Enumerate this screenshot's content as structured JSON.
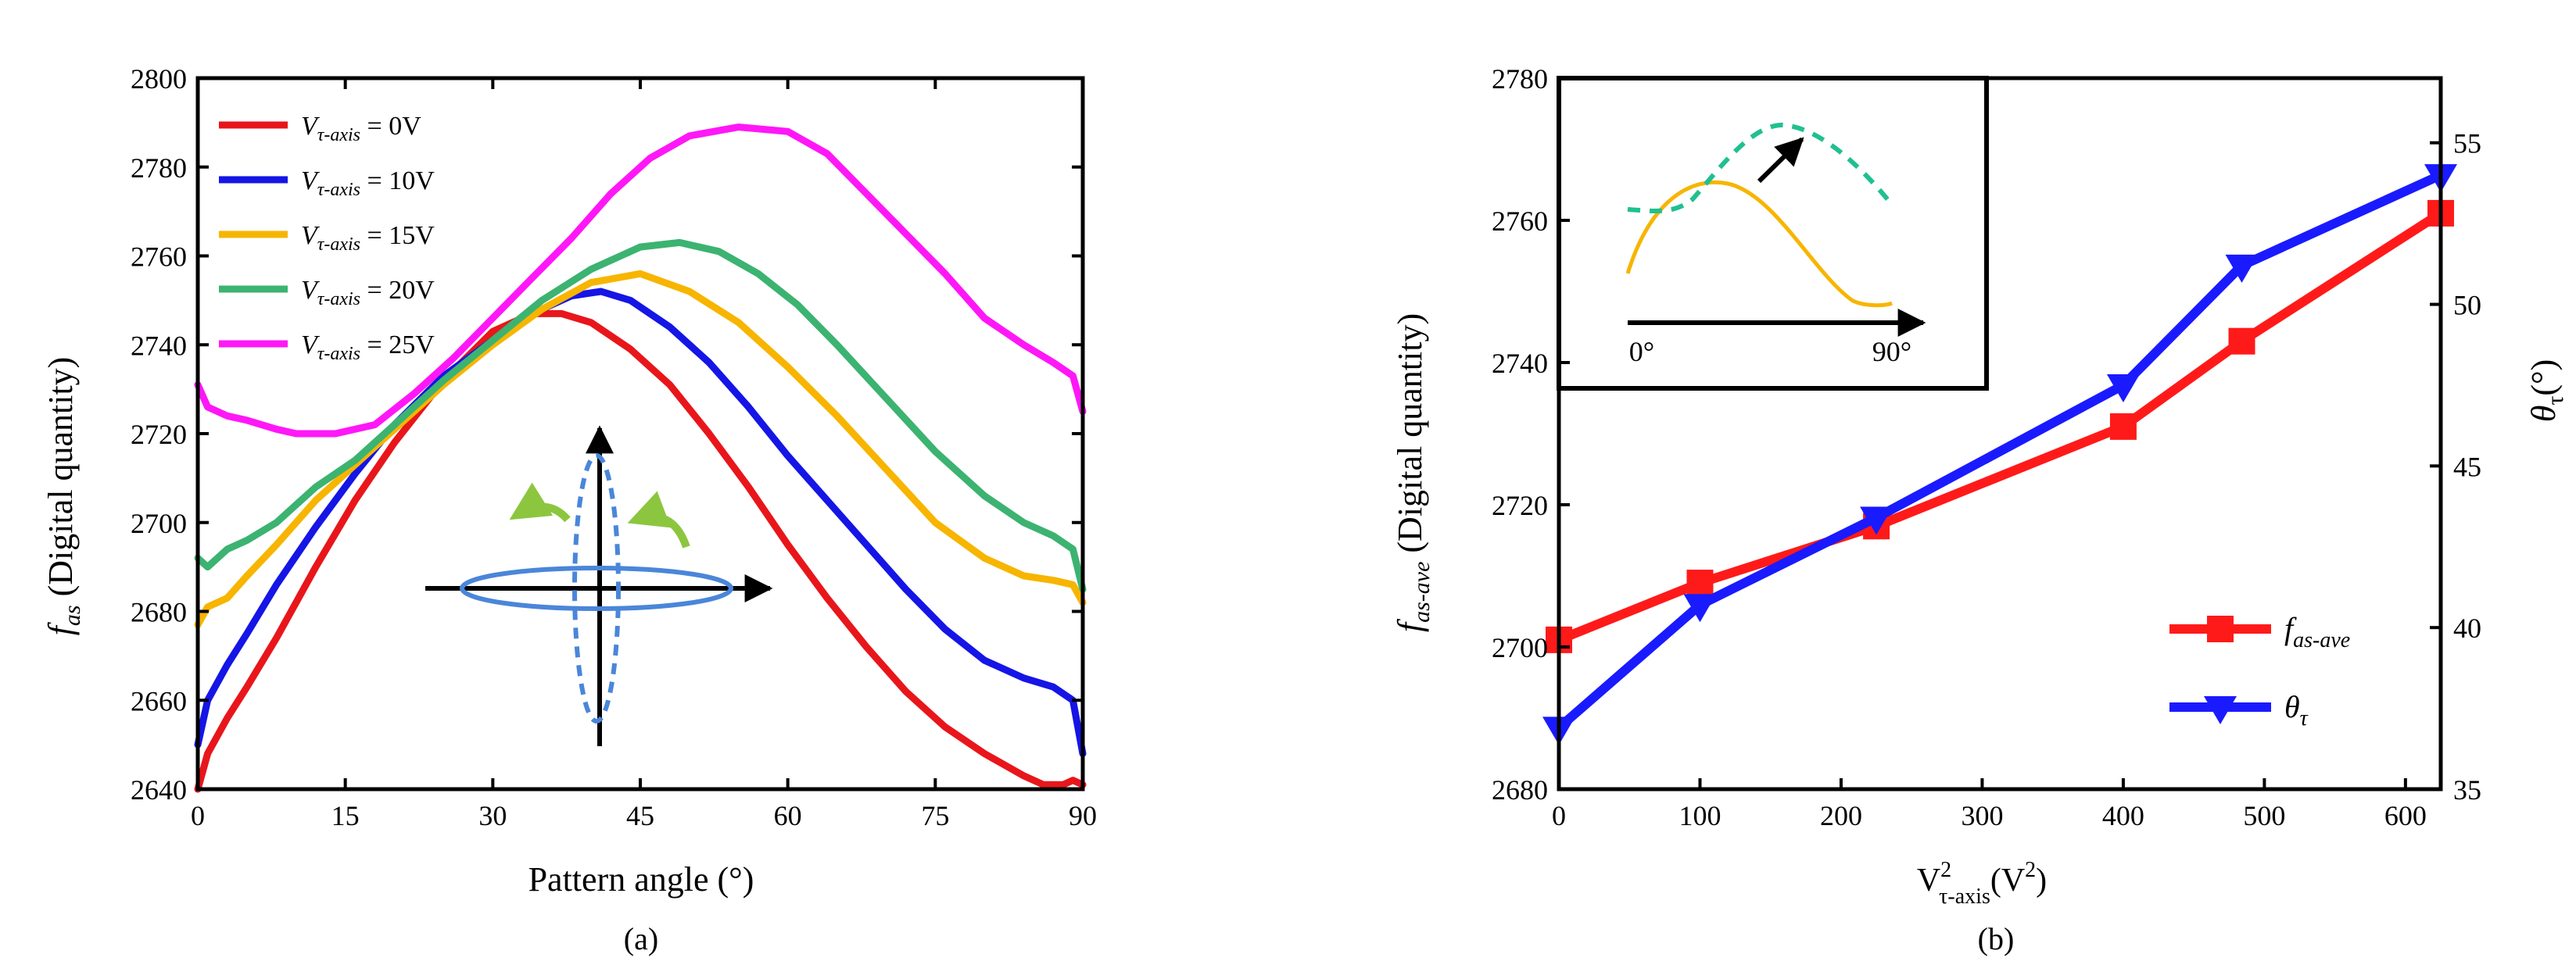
{
  "chart_data": [
    {
      "type": "line",
      "panel_label": "(a)",
      "xlabel": "Pattern angle (°)",
      "ylabel_main": "f",
      "ylabel_sub": "as",
      "ylabel_rest": " (Digital quantity)",
      "xlim": [
        0,
        90
      ],
      "ylim": [
        2640,
        2800
      ],
      "xticks": [
        0,
        15,
        30,
        45,
        60,
        75,
        90
      ],
      "yticks": [
        2640,
        2660,
        2680,
        2700,
        2720,
        2740,
        2760,
        2780,
        2800
      ],
      "legend_position": "top-left",
      "series": [
        {
          "name": "Vτ-axis = 0V",
          "legend_var": "V",
          "legend_sub": "τ-axis",
          "legend_val": " = 0V",
          "color": "#e8161b",
          "x": [
            0,
            1,
            3,
            5,
            8,
            12,
            16,
            20,
            25,
            30,
            34,
            37,
            40,
            44,
            48,
            52,
            56,
            60,
            64,
            68,
            72,
            76,
            80,
            84,
            86,
            88,
            89,
            90
          ],
          "y": [
            2640,
            2648,
            2656,
            2663,
            2674,
            2690,
            2705,
            2718,
            2732,
            2743,
            2747,
            2747,
            2745,
            2739,
            2731,
            2720,
            2708,
            2695,
            2683,
            2672,
            2662,
            2654,
            2648,
            2643,
            2641,
            2641,
            2642,
            2641
          ]
        },
        {
          "name": "Vτ-axis = 10V",
          "legend_var": "V",
          "legend_sub": "τ-axis",
          "legend_val": " = 10V",
          "color": "#1515e6",
          "x": [
            0,
            1,
            3,
            5,
            8,
            12,
            16,
            20,
            25,
            30,
            34,
            38,
            41,
            44,
            48,
            52,
            56,
            60,
            64,
            68,
            72,
            76,
            80,
            84,
            87,
            89,
            90
          ],
          "y": [
            2650,
            2660,
            2668,
            2675,
            2686,
            2699,
            2711,
            2722,
            2733,
            2741,
            2747,
            2751,
            2752,
            2750,
            2744,
            2736,
            2726,
            2715,
            2705,
            2695,
            2685,
            2676,
            2669,
            2665,
            2663,
            2660,
            2648
          ]
        },
        {
          "name": "Vτ-axis = 15V",
          "legend_var": "V",
          "legend_sub": "τ-axis",
          "legend_val": " = 15V",
          "color": "#f7b500",
          "x": [
            0,
            1,
            3,
            5,
            8,
            12,
            16,
            20,
            25,
            30,
            35,
            40,
            45,
            50,
            55,
            60,
            65,
            70,
            75,
            80,
            84,
            87,
            89,
            90
          ],
          "y": [
            2677,
            2681,
            2683,
            2688,
            2695,
            2705,
            2713,
            2721,
            2731,
            2740,
            2748,
            2754,
            2756,
            2752,
            2745,
            2735,
            2724,
            2712,
            2700,
            2692,
            2688,
            2687,
            2686,
            2682
          ]
        },
        {
          "name": "Vτ-axis = 20V",
          "legend_var": "V",
          "legend_sub": "τ-axis",
          "legend_val": " = 20V",
          "color": "#3cb371",
          "x": [
            0,
            1,
            3,
            5,
            8,
            12,
            16,
            20,
            25,
            30,
            35,
            40,
            45,
            49,
            53,
            57,
            61,
            65,
            70,
            75,
            80,
            84,
            87,
            89,
            90
          ],
          "y": [
            2692,
            2690,
            2694,
            2696,
            2700,
            2708,
            2714,
            2722,
            2732,
            2741,
            2750,
            2757,
            2762,
            2763,
            2761,
            2756,
            2749,
            2740,
            2728,
            2716,
            2706,
            2700,
            2697,
            2694,
            2685
          ]
        },
        {
          "name": "Vτ-axis = 25V",
          "legend_var": "V",
          "legend_sub": "τ-axis",
          "legend_val": " = 25V",
          "color": "#ff17f7",
          "x": [
            0,
            1,
            3,
            5,
            8,
            10,
            14,
            18,
            22,
            26,
            30,
            34,
            38,
            42,
            46,
            50,
            55,
            60,
            64,
            68,
            72,
            76,
            80,
            84,
            87,
            89,
            90
          ],
          "y": [
            2731,
            2726,
            2724,
            2723,
            2721,
            2720,
            2720,
            2722,
            2729,
            2737,
            2746,
            2755,
            2764,
            2774,
            2782,
            2787,
            2789,
            2788,
            2783,
            2774,
            2765,
            2756,
            2746,
            2740,
            2736,
            2733,
            2725
          ]
        }
      ],
      "inset_note": "axis and ellipse sketch"
    },
    {
      "type": "line",
      "panel_label": "(b)",
      "xlabel_main": "V",
      "xlabel_sup": "2",
      "xlabel_sub": "τ-axis",
      "xlabel_rest": "(V",
      "xlabel_rest_sup": "2",
      "xlabel_close": ")",
      "ylabel_main": "f",
      "ylabel_sub": "as-ave",
      "ylabel_rest": " (Digital quantity)",
      "y2label_main": "θ",
      "y2label_sub": "τ",
      "y2label_rest": "(°)",
      "xlim": [
        0,
        625
      ],
      "ylim": [
        2680,
        2780
      ],
      "y2lim": [
        35,
        57
      ],
      "xticks": [
        0,
        100,
        200,
        300,
        400,
        500,
        600
      ],
      "yticks": [
        2680,
        2700,
        2720,
        2740,
        2760,
        2780
      ],
      "y2ticks": [
        35,
        40,
        45,
        50,
        55
      ],
      "legend_position": "bottom-right",
      "series": [
        {
          "name": "fas-ave",
          "legend_var": "f",
          "legend_sub": "as-ave",
          "axis": "left",
          "marker": "square",
          "color": "#ff1a1a",
          "x": [
            0,
            100,
            225,
            400,
            484,
            625
          ],
          "y": [
            2701,
            2709,
            2717,
            2731,
            2743,
            2761
          ]
        },
        {
          "name": "θτ",
          "legend_var": "θ",
          "legend_sub": "τ",
          "axis": "right",
          "marker": "triangle-down",
          "color": "#1a1aff",
          "x": [
            0,
            100,
            225,
            400,
            484,
            625
          ],
          "y": [
            36.9,
            40.7,
            43.4,
            47.5,
            51.2,
            54.0
          ]
        }
      ],
      "inset": {
        "x_start_label": "0°",
        "x_end_label": "90°",
        "curves": [
          {
            "style": "solid",
            "color": "#f7b500"
          },
          {
            "style": "dashed",
            "color": "#20c090"
          }
        ]
      }
    }
  ]
}
